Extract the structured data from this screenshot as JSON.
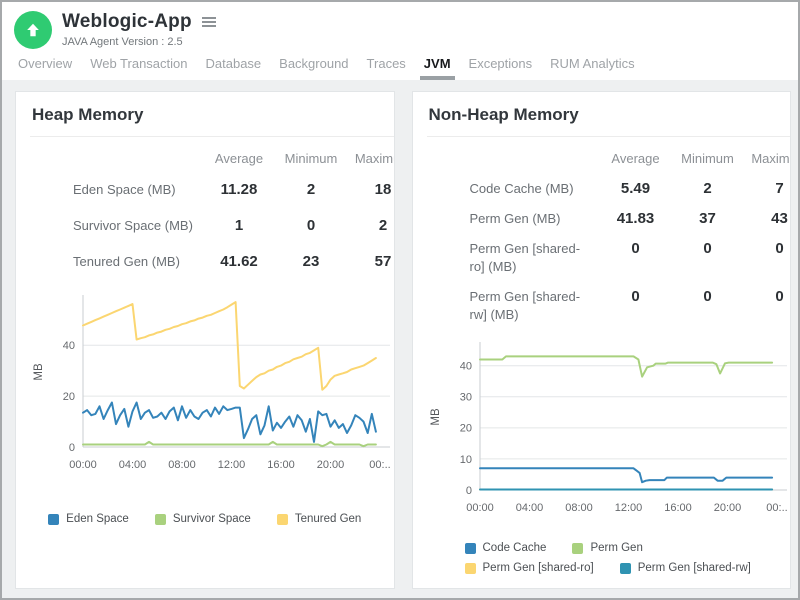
{
  "header": {
    "app_title": "Weblogic-App",
    "subtitle": "JAVA Agent Version : 2.5",
    "icon_color": "#2fcb72"
  },
  "tabs": {
    "items": [
      "Overview",
      "Web Transaction",
      "Database",
      "Background",
      "Traces",
      "JVM",
      "Exceptions",
      "RUM Analytics"
    ],
    "active": "JVM"
  },
  "panels": {
    "heap": {
      "title": "Heap Memory",
      "table": {
        "headers": [
          "Average",
          "Minimum",
          "Maximum"
        ],
        "rows": [
          {
            "label": "Eden Space (MB)",
            "values": [
              "11.28",
              "2",
              "18"
            ]
          },
          {
            "label": "Survivor Space (MB)",
            "values": [
              "1",
              "0",
              "2"
            ]
          },
          {
            "label": "Tenured Gen (MB)",
            "values": [
              "41.62",
              "23",
              "57"
            ]
          }
        ]
      }
    },
    "non_heap": {
      "title": "Non-Heap Memory",
      "table": {
        "headers": [
          "Average",
          "Minimum",
          "Maximum"
        ],
        "rows": [
          {
            "label": "Code Cache (MB)",
            "values": [
              "5.49",
              "2",
              "7"
            ]
          },
          {
            "label": "Perm Gen (MB)",
            "values": [
              "41.83",
              "37",
              "43"
            ]
          },
          {
            "label": "Perm Gen [shared-ro] (MB)",
            "values": [
              "0",
              "0",
              "0"
            ]
          },
          {
            "label": "Perm Gen [shared-rw] (MB)",
            "values": [
              "0",
              "0",
              "0"
            ]
          }
        ]
      }
    }
  },
  "chart_data": [
    {
      "panel": "heap",
      "type": "line",
      "title": "Heap Memory",
      "ylabel": "MB",
      "ylim": [
        0,
        59
      ],
      "yticks": [
        0,
        20,
        40
      ],
      "grid": true,
      "legend_position": "bottom",
      "legend_align": "center",
      "legend_rows": [
        [
          0,
          1,
          2
        ]
      ],
      "xticks": {
        "labels": [
          "00:00",
          "04:00",
          "08:00",
          "12:00",
          "16:00",
          "20:00",
          "00:.."
        ],
        "hours": [
          0,
          4,
          8,
          12,
          16,
          20,
          24
        ]
      },
      "xspan_hours": 23.67,
      "height": 190,
      "series": [
        {
          "name": "Eden Space",
          "color": "#3484ba",
          "y": [
            13.5,
            14.5,
            12.5,
            13,
            16,
            11,
            14.5,
            17.5,
            9,
            12.5,
            15,
            8,
            14,
            17.5,
            11,
            13.5,
            14.5,
            11.5,
            12,
            13.5,
            11,
            14,
            15.5,
            10.5,
            16,
            11.5,
            14.5,
            12,
            11,
            13.5,
            14.5,
            12,
            15.5,
            13,
            16,
            14.5,
            15,
            15.5,
            15.5,
            3.5,
            7,
            11,
            12.5,
            5,
            8.5,
            16,
            6.5,
            9.5,
            7.5,
            10,
            12,
            8,
            12.5,
            10.5,
            6,
            11,
            2,
            14,
            12.5,
            13,
            8,
            10.5,
            7.5,
            9,
            5.5,
            8.5,
            12.5,
            11.5,
            10,
            5.5,
            13,
            6
          ]
        },
        {
          "name": "Survivor Space",
          "color": "#a9d17e",
          "y": [
            1,
            1,
            1,
            1,
            1,
            1,
            1,
            1,
            1,
            1,
            1,
            1,
            1,
            1,
            1,
            1,
            2,
            1,
            1,
            1,
            1,
            1,
            1,
            1,
            1,
            1,
            1,
            1,
            1,
            1,
            1,
            1,
            1,
            1,
            1,
            1,
            1,
            1,
            1,
            1,
            1,
            1,
            1,
            1,
            1,
            1,
            2,
            1,
            1,
            1,
            1,
            1,
            1,
            1,
            1,
            1,
            1,
            1,
            0.3,
            1,
            2,
            1,
            1,
            1,
            1,
            1,
            1,
            1,
            0.3,
            1,
            1,
            1
          ]
        },
        {
          "name": "Tenured Gen",
          "color": "#fbd671",
          "y": [
            47.8,
            48.5,
            49.2,
            49.9,
            50.6,
            51.3,
            52,
            52.7,
            53.4,
            54.1,
            54.8,
            55.5,
            56.2,
            42.3,
            42.8,
            43.2,
            43.9,
            44.3,
            45,
            45.4,
            46.1,
            46.5,
            47.2,
            47.6,
            48.3,
            48.7,
            49.4,
            49.8,
            50.5,
            50.9,
            51.6,
            52,
            52.7,
            53.4,
            54.1,
            55,
            56,
            57,
            24,
            23,
            24.5,
            26,
            27.5,
            28.5,
            29,
            30,
            30.5,
            31.5,
            32,
            33,
            33.5,
            34.5,
            35,
            35.5,
            36.5,
            37,
            38,
            39,
            22.5,
            24,
            26.5,
            28,
            28.5,
            29,
            29.5,
            30.5,
            31,
            31.5,
            32,
            33,
            34,
            35
          ]
        }
      ]
    },
    {
      "panel": "non_heap",
      "type": "line",
      "title": "Non-Heap Memory",
      "ylabel": "MB",
      "ylim": [
        0,
        47
      ],
      "yticks": [
        0,
        10,
        20,
        30,
        40
      ],
      "grid": true,
      "legend_position": "bottom",
      "legend_align": "left",
      "legend_rows": [
        [
          0,
          1
        ],
        [
          2,
          3
        ]
      ],
      "xticks": {
        "labels": [
          "00:00",
          "04:00",
          "08:00",
          "12:00",
          "16:00",
          "20:00",
          "00:.."
        ],
        "hours": [
          0,
          4,
          8,
          12,
          16,
          20,
          24
        ]
      },
      "xspan_hours": 23.67,
      "height": 186,
      "series": [
        {
          "name": "Code Cache",
          "color": "#3484ba",
          "points": [
            [
              0,
              7
            ],
            [
              12.4,
              7
            ],
            [
              12.9,
              5.5
            ],
            [
              13.1,
              2.5
            ],
            [
              13.4,
              3
            ],
            [
              13.7,
              3.2
            ],
            [
              14.9,
              3.2
            ],
            [
              15.1,
              4
            ],
            [
              18.9,
              4
            ],
            [
              19.2,
              3
            ],
            [
              19.6,
              3
            ],
            [
              19.9,
              4
            ],
            [
              23.6,
              4
            ]
          ]
        },
        {
          "name": "Perm Gen",
          "color": "#a9d17e",
          "points": [
            [
              0,
              42
            ],
            [
              1.8,
              42
            ],
            [
              2.1,
              43
            ],
            [
              12.4,
              43
            ],
            [
              12.8,
              42
            ],
            [
              13.1,
              36.5
            ],
            [
              13.5,
              39.5
            ],
            [
              14,
              40
            ],
            [
              14.2,
              40.7
            ],
            [
              15,
              40.7
            ],
            [
              15.2,
              41
            ],
            [
              18.8,
              41
            ],
            [
              19.1,
              40.5
            ],
            [
              19.4,
              37.5
            ],
            [
              19.8,
              40.8
            ],
            [
              20.1,
              41
            ],
            [
              23.6,
              41
            ]
          ]
        },
        {
          "name": "Perm Gen [shared-ro]",
          "color": "#fbd671",
          "points": [
            [
              0,
              0.15
            ],
            [
              23.6,
              0.15
            ]
          ]
        },
        {
          "name": "Perm Gen [shared-rw]",
          "color": "#2f93b2",
          "points": [
            [
              0,
              0.15
            ],
            [
              23.6,
              0.15
            ]
          ]
        }
      ]
    }
  ]
}
